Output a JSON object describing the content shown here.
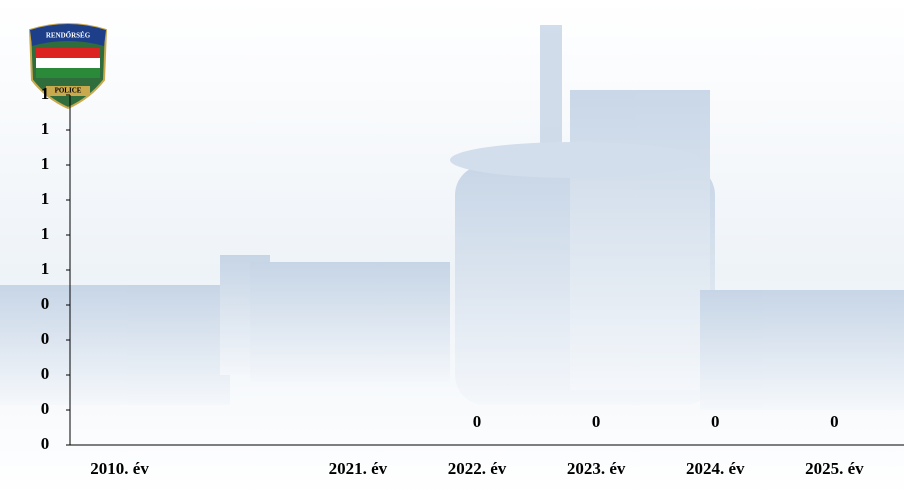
{
  "logo": {
    "top_text": "RENDŐRSÉG",
    "bottom_text": "POLICE"
  },
  "chart_data": {
    "type": "bar",
    "categories": [
      "2010. év",
      null,
      "2021. év",
      "2022. év",
      "2023. év",
      "2024. év",
      "2025. év"
    ],
    "values": [
      null,
      null,
      null,
      0,
      0,
      0,
      0
    ],
    "color": "#4f6fa8",
    "ylim": [
      0,
      1
    ],
    "yticks": [
      {
        "value": 0,
        "label": "0"
      },
      {
        "value": 0.1,
        "label": "0"
      },
      {
        "value": 0.2,
        "label": "0"
      },
      {
        "value": 0.3,
        "label": "0"
      },
      {
        "value": 0.4,
        "label": "0"
      },
      {
        "value": 0.5,
        "label": "1"
      },
      {
        "value": 0.6,
        "label": "1"
      },
      {
        "value": 0.7,
        "label": "1"
      },
      {
        "value": 0.8,
        "label": "1"
      },
      {
        "value": 0.9,
        "label": "1"
      },
      {
        "value": 1,
        "label": "1"
      }
    ],
    "grid": false
  }
}
